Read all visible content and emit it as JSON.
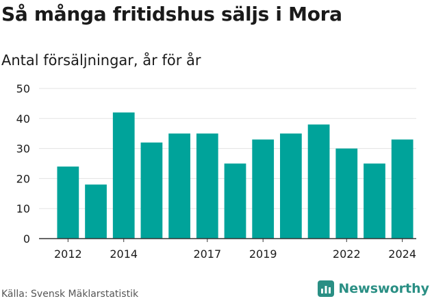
{
  "header": {
    "title": "Så många fritidshus säljs i Mora",
    "subtitle": "Antal försäljningar, år för år"
  },
  "footer": {
    "source": "Källa: Svensk Mäklarstatistik",
    "brand": "Newsworthy",
    "brand_icon": "chart-bar-icon"
  },
  "colors": {
    "bar": "#00a39a",
    "brand": "#2a8f84",
    "grid": "#e3e3e3",
    "text": "#1a1a1a"
  },
  "chart_data": {
    "type": "bar",
    "categories": [
      "2012",
      "2013",
      "2014",
      "2015",
      "2016",
      "2017",
      "2018",
      "2019",
      "2020",
      "2021",
      "2022",
      "2023",
      "2024"
    ],
    "values": [
      24,
      18,
      42,
      32,
      35,
      35,
      25,
      33,
      35,
      38,
      30,
      25,
      33
    ],
    "x_tick_labels": [
      "2012",
      "2014",
      "2017",
      "2019",
      "2022",
      "2024"
    ],
    "y_ticks": [
      0,
      10,
      20,
      30,
      40,
      50
    ],
    "ylim": [
      0,
      50
    ],
    "grid": true,
    "legend": "none"
  }
}
